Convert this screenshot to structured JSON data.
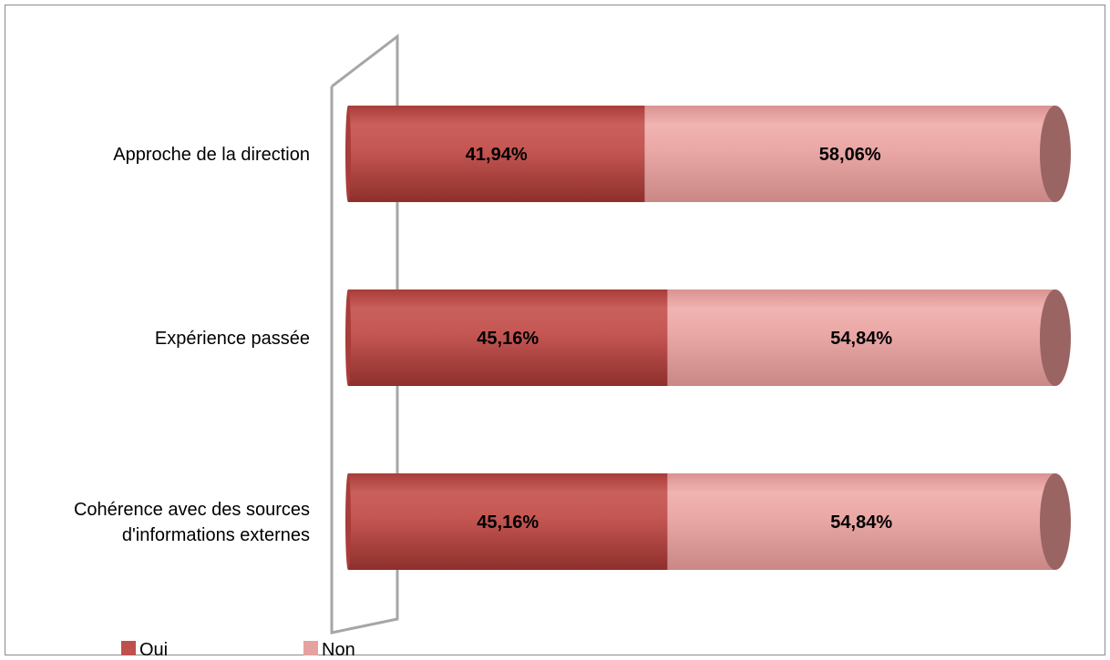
{
  "chart_data": {
    "type": "bar",
    "orientation": "horizontal",
    "stacked": "100%",
    "style": "3d-cylinder",
    "categories": [
      "Approche de la direction",
      "Expérience passée",
      "Cohérence avec des sources d'informations externes"
    ],
    "category_label_lines": [
      [
        "Approche de la direction"
      ],
      [
        "Expérience passée"
      ],
      [
        "Cohérence avec des sources",
        "d'informations externes"
      ]
    ],
    "series": [
      {
        "name": "Oui",
        "values": [
          41.94,
          45.16,
          45.16
        ],
        "labels": [
          "41,94%",
          "45,16%",
          "45,16%"
        ],
        "color": "#c0504d"
      },
      {
        "name": "Non",
        "values": [
          58.06,
          54.84,
          54.84
        ],
        "labels": [
          "58,06%",
          "54,84%",
          "54,84%"
        ],
        "color": "#e6a2a1"
      }
    ],
    "xlim": [
      0,
      100
    ],
    "legend": {
      "position": "bottom-left",
      "entries": [
        "Oui",
        "Non"
      ]
    },
    "grid": false
  }
}
